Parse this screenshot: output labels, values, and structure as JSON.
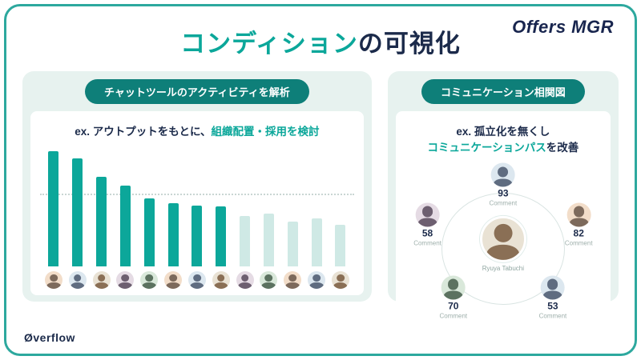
{
  "logo": {
    "text": "Offers MGR"
  },
  "title": {
    "highlight": "コンディション",
    "rest": "の可視化"
  },
  "footer": {
    "logo": "Øverflow"
  },
  "left_panel": {
    "badge": "チャットツールのアクティビティを解析",
    "caption_prefix": "ex. アウトプットをもとに、",
    "caption_highlight": "組織配置・採用を検討"
  },
  "right_panel": {
    "badge": "コミュニケーション相関図",
    "caption_line1": "ex. 孤立化を無くし",
    "caption_line2_highlight": "コミュニケーションパス",
    "caption_line2_rest": "を改善"
  },
  "chart_data": {
    "type": "bar",
    "values": [
      100,
      94,
      78,
      70,
      59,
      55,
      53,
      52,
      44,
      46,
      39,
      42,
      36
    ],
    "dark_bar_count": 8,
    "reference_line": 62,
    "colors": {
      "dark": "#0ca79a",
      "light": "#cfe9e5"
    },
    "x_axis": "13 team members shown as avatar photos",
    "ylabel": "",
    "legend": "none; no numeric axis shown, heights estimated 0-100"
  },
  "network": {
    "center_name": "Ryuya Tabuchi",
    "nodes": [
      {
        "value": 93,
        "label": "Comment",
        "position": "top"
      },
      {
        "value": 58,
        "label": "Comment",
        "position": "left"
      },
      {
        "value": 82,
        "label": "Comment",
        "position": "right"
      },
      {
        "value": 70,
        "label": "Comment",
        "position": "bottom-left"
      },
      {
        "value": 53,
        "label": "Comment",
        "position": "bottom-right"
      }
    ]
  },
  "colors": {
    "teal": "#0ba79a",
    "navy": "#1b2a4a",
    "frame_border": "#2da89e",
    "panel_bg": "#e7f2ef",
    "badge_bg": "#0e7f79"
  }
}
